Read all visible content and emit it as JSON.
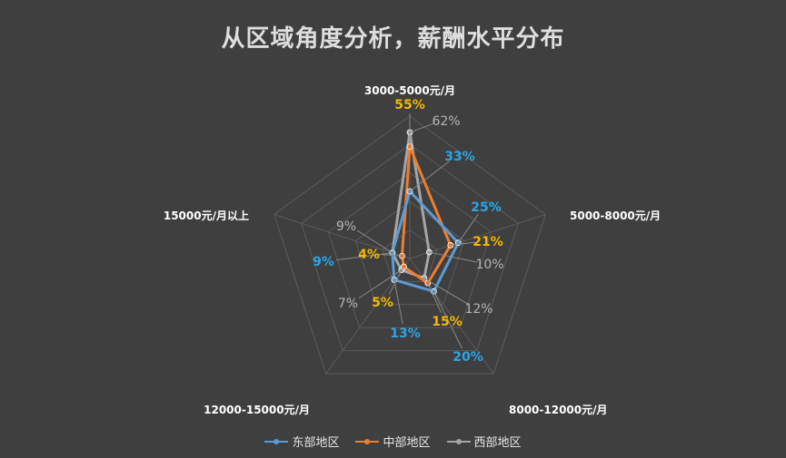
{
  "chart_data": {
    "type": "radar",
    "title": "从区域角度分析，薪酬水平分布",
    "categories": [
      "3000-5000元/月",
      "5000-8000元/月",
      "8000-12000元/月",
      "12000-15000元/月",
      "15000元/月以上"
    ],
    "series": [
      {
        "name": "东部地区",
        "color": "#5b9bd5",
        "label_color": "#2aa6e8",
        "values": [
          33,
          25,
          20,
          13,
          9
        ],
        "labels": [
          "33%",
          "25%",
          "20%",
          "13%",
          "9%"
        ]
      },
      {
        "name": "中部地区",
        "color": "#ed7d31",
        "label_color": "#f5b800",
        "values": [
          55,
          21,
          15,
          5,
          4
        ],
        "labels": [
          "55%",
          "21%",
          "15%",
          "5%",
          "4%"
        ]
      },
      {
        "name": "西部地区",
        "color": "#a5a5a5",
        "label_color": "#b5b5b5",
        "values": [
          62,
          10,
          12,
          7,
          9
        ],
        "labels": [
          "62%",
          "10%",
          "12%",
          "7%",
          "9%"
        ]
      }
    ],
    "rlim": [
      0,
      70
    ],
    "grid": true,
    "legend_position": "bottom"
  }
}
